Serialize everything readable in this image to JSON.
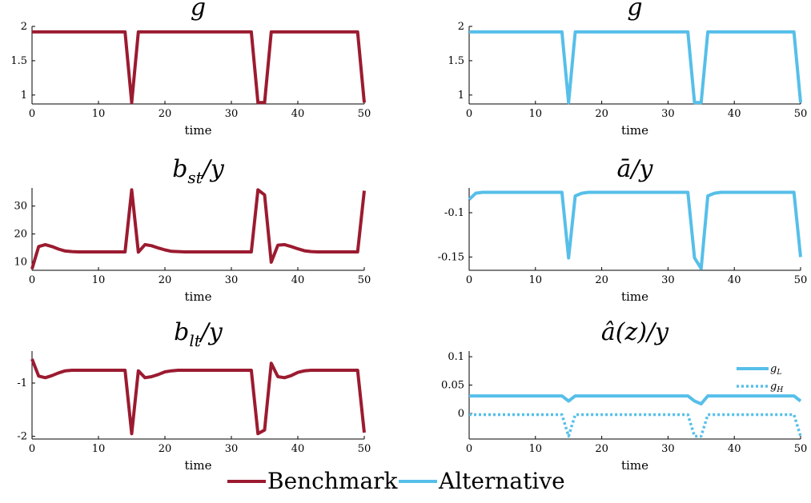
{
  "colors": {
    "benchmark": "#9b1b30",
    "alternative": "#56bfe9"
  },
  "legend": {
    "position": "bottom-center",
    "items": [
      "Benchmark",
      "Alternative"
    ]
  },
  "chart_data": [
    {
      "type": "line",
      "title": "g",
      "xlabel": "time",
      "ylabel": "",
      "xlim": [
        0,
        50
      ],
      "ylim": [
        0.87,
        2.0
      ],
      "xticks": [
        "0",
        "10",
        "20",
        "30",
        "40",
        "50"
      ],
      "yticks": [
        "1",
        "1.5",
        "2"
      ],
      "ytick_values": [
        1,
        1.5,
        2
      ],
      "grid": false,
      "x": [
        0,
        1,
        2,
        3,
        4,
        5,
        6,
        7,
        8,
        9,
        10,
        11,
        12,
        13,
        14,
        15,
        16,
        17,
        18,
        19,
        20,
        21,
        22,
        23,
        24,
        25,
        26,
        27,
        28,
        29,
        30,
        31,
        32,
        33,
        34,
        35,
        36,
        37,
        38,
        39,
        40,
        41,
        42,
        43,
        44,
        45,
        46,
        47,
        48,
        49,
        50
      ],
      "series": [
        {
          "name": "Benchmark",
          "color_key": "benchmark",
          "style": "solid",
          "values": [
            1.92,
            1.92,
            1.92,
            1.92,
            1.92,
            1.92,
            1.92,
            1.92,
            1.92,
            1.92,
            1.92,
            1.92,
            1.92,
            1.92,
            1.92,
            0.89,
            1.92,
            1.92,
            1.92,
            1.92,
            1.92,
            1.92,
            1.92,
            1.92,
            1.92,
            1.92,
            1.92,
            1.92,
            1.92,
            1.92,
            1.92,
            1.92,
            1.92,
            1.92,
            0.89,
            0.89,
            1.92,
            1.92,
            1.92,
            1.92,
            1.92,
            1.92,
            1.92,
            1.92,
            1.92,
            1.92,
            1.92,
            1.92,
            1.92,
            1.92,
            0.89
          ]
        }
      ]
    },
    {
      "type": "line",
      "title": "g",
      "xlabel": "time",
      "ylabel": "",
      "xlim": [
        0,
        50
      ],
      "ylim": [
        0.87,
        2.0
      ],
      "xticks": [
        "0",
        "10",
        "20",
        "30",
        "40",
        "50"
      ],
      "yticks": [
        "1",
        "1.5",
        "2"
      ],
      "ytick_values": [
        1,
        1.5,
        2
      ],
      "grid": false,
      "x": [
        0,
        1,
        2,
        3,
        4,
        5,
        6,
        7,
        8,
        9,
        10,
        11,
        12,
        13,
        14,
        15,
        16,
        17,
        18,
        19,
        20,
        21,
        22,
        23,
        24,
        25,
        26,
        27,
        28,
        29,
        30,
        31,
        32,
        33,
        34,
        35,
        36,
        37,
        38,
        39,
        40,
        41,
        42,
        43,
        44,
        45,
        46,
        47,
        48,
        49,
        50
      ],
      "series": [
        {
          "name": "Alternative",
          "color_key": "alternative",
          "style": "solid",
          "values": [
            1.92,
            1.92,
            1.92,
            1.92,
            1.92,
            1.92,
            1.92,
            1.92,
            1.92,
            1.92,
            1.92,
            1.92,
            1.92,
            1.92,
            1.92,
            0.89,
            1.92,
            1.92,
            1.92,
            1.92,
            1.92,
            1.92,
            1.92,
            1.92,
            1.92,
            1.92,
            1.92,
            1.92,
            1.92,
            1.92,
            1.92,
            1.92,
            1.92,
            1.92,
            0.89,
            0.89,
            1.92,
            1.92,
            1.92,
            1.92,
            1.92,
            1.92,
            1.92,
            1.92,
            1.92,
            1.92,
            1.92,
            1.92,
            1.92,
            1.92,
            0.89
          ]
        }
      ]
    },
    {
      "type": "line",
      "title": "b_st/y",
      "xlabel": "time",
      "ylabel": "",
      "xlim": [
        0,
        50
      ],
      "ylim": [
        7,
        36.5
      ],
      "xticks": [
        "0",
        "10",
        "20",
        "30",
        "40",
        "50"
      ],
      "yticks": [
        "10",
        "20",
        "30"
      ],
      "ytick_values": [
        10,
        20,
        30
      ],
      "grid": false,
      "x": [
        0,
        1,
        2,
        3,
        4,
        5,
        6,
        7,
        8,
        9,
        10,
        11,
        12,
        13,
        14,
        15,
        16,
        17,
        18,
        19,
        20,
        21,
        22,
        23,
        24,
        25,
        26,
        27,
        28,
        29,
        30,
        31,
        32,
        33,
        34,
        35,
        36,
        37,
        38,
        39,
        40,
        41,
        42,
        43,
        44,
        45,
        46,
        47,
        48,
        49,
        50
      ],
      "series": [
        {
          "name": "Benchmark",
          "color_key": "benchmark",
          "style": "solid",
          "values": [
            7.5,
            15.5,
            16.2,
            15.5,
            14.6,
            13.9,
            13.7,
            13.6,
            13.6,
            13.6,
            13.6,
            13.6,
            13.6,
            13.6,
            13.6,
            35.8,
            13.5,
            16.2,
            15.8,
            15.0,
            14.3,
            13.8,
            13.7,
            13.6,
            13.6,
            13.6,
            13.6,
            13.6,
            13.6,
            13.6,
            13.6,
            13.6,
            13.6,
            13.6,
            35.8,
            34.0,
            9.9,
            16.0,
            16.2,
            15.5,
            14.7,
            14.0,
            13.7,
            13.6,
            13.6,
            13.6,
            13.6,
            13.6,
            13.6,
            13.6,
            35.5
          ]
        }
      ]
    },
    {
      "type": "line",
      "title": "ā/y",
      "xlabel": "time",
      "ylabel": "",
      "xlim": [
        0,
        50
      ],
      "ylim": [
        -0.165,
        -0.072
      ],
      "xticks": [
        "0",
        "10",
        "20",
        "30",
        "40",
        "50"
      ],
      "yticks": [
        "-0.1",
        "-0.15"
      ],
      "ytick_values": [
        -0.1,
        -0.15
      ],
      "grid": false,
      "x": [
        0,
        1,
        2,
        3,
        4,
        5,
        6,
        7,
        8,
        9,
        10,
        11,
        12,
        13,
        14,
        15,
        16,
        17,
        18,
        19,
        20,
        21,
        22,
        23,
        24,
        25,
        26,
        27,
        28,
        29,
        30,
        31,
        32,
        33,
        34,
        35,
        36,
        37,
        38,
        39,
        40,
        41,
        42,
        43,
        44,
        45,
        46,
        47,
        48,
        49,
        50
      ],
      "series": [
        {
          "name": "Alternative",
          "color_key": "alternative",
          "style": "solid",
          "values": [
            -0.085,
            -0.078,
            -0.077,
            -0.077,
            -0.077,
            -0.077,
            -0.077,
            -0.077,
            -0.077,
            -0.077,
            -0.077,
            -0.077,
            -0.077,
            -0.077,
            -0.077,
            -0.151,
            -0.081,
            -0.078,
            -0.077,
            -0.077,
            -0.077,
            -0.077,
            -0.077,
            -0.077,
            -0.077,
            -0.077,
            -0.077,
            -0.077,
            -0.077,
            -0.077,
            -0.077,
            -0.077,
            -0.077,
            -0.077,
            -0.151,
            -0.163,
            -0.081,
            -0.078,
            -0.077,
            -0.077,
            -0.077,
            -0.077,
            -0.077,
            -0.077,
            -0.077,
            -0.077,
            -0.077,
            -0.077,
            -0.077,
            -0.077,
            -0.15
          ]
        }
      ]
    },
    {
      "type": "line",
      "title": "b_lt/y",
      "xlabel": "time",
      "ylabel": "",
      "xlim": [
        0,
        50
      ],
      "ylim": [
        -2.05,
        -0.4
      ],
      "xticks": [
        "0",
        "10",
        "20",
        "30",
        "40",
        "50"
      ],
      "yticks": [
        "-1",
        "-2"
      ],
      "ytick_values": [
        -1,
        -2
      ],
      "grid": false,
      "x": [
        0,
        1,
        2,
        3,
        4,
        5,
        6,
        7,
        8,
        9,
        10,
        11,
        12,
        13,
        14,
        15,
        16,
        17,
        18,
        19,
        20,
        21,
        22,
        23,
        24,
        25,
        26,
        27,
        28,
        29,
        30,
        31,
        32,
        33,
        34,
        35,
        36,
        37,
        38,
        39,
        40,
        41,
        42,
        43,
        44,
        45,
        46,
        47,
        48,
        49,
        50
      ],
      "series": [
        {
          "name": "Benchmark",
          "color_key": "benchmark",
          "style": "solid",
          "values": [
            -0.55,
            -0.87,
            -0.9,
            -0.86,
            -0.81,
            -0.77,
            -0.76,
            -0.76,
            -0.76,
            -0.76,
            -0.76,
            -0.76,
            -0.76,
            -0.76,
            -0.76,
            -1.95,
            -0.77,
            -0.9,
            -0.88,
            -0.84,
            -0.79,
            -0.77,
            -0.76,
            -0.76,
            -0.76,
            -0.76,
            -0.76,
            -0.76,
            -0.76,
            -0.76,
            -0.76,
            -0.76,
            -0.76,
            -0.76,
            -1.95,
            -1.88,
            -0.63,
            -0.88,
            -0.9,
            -0.86,
            -0.8,
            -0.77,
            -0.76,
            -0.76,
            -0.76,
            -0.76,
            -0.76,
            -0.76,
            -0.76,
            -0.76,
            -1.93
          ]
        }
      ]
    },
    {
      "type": "line",
      "title": "â(z)/y",
      "xlabel": "time",
      "ylabel": "",
      "xlim": [
        0,
        50
      ],
      "ylim": [
        -0.045,
        0.11
      ],
      "xticks": [
        "0",
        "10",
        "20",
        "30",
        "40",
        "50"
      ],
      "yticks": [
        "0.1",
        "0.05",
        "0"
      ],
      "ytick_values": [
        0.1,
        0.05,
        0
      ],
      "grid": false,
      "legend": {
        "position": "top-right",
        "labels": [
          "g_L",
          "g_H"
        ],
        "label_main": [
          "g",
          "g"
        ],
        "label_sub": [
          "L",
          "H"
        ]
      },
      "x": [
        0,
        1,
        2,
        3,
        4,
        5,
        6,
        7,
        8,
        9,
        10,
        11,
        12,
        13,
        14,
        15,
        16,
        17,
        18,
        19,
        20,
        21,
        22,
        23,
        24,
        25,
        26,
        27,
        28,
        29,
        30,
        31,
        32,
        33,
        34,
        35,
        36,
        37,
        38,
        39,
        40,
        41,
        42,
        43,
        44,
        45,
        46,
        47,
        48,
        49,
        50
      ],
      "series": [
        {
          "name": "g_L",
          "color_key": "alternative",
          "style": "solid",
          "values": [
            0.031,
            0.031,
            0.031,
            0.031,
            0.031,
            0.031,
            0.031,
            0.031,
            0.031,
            0.031,
            0.031,
            0.031,
            0.031,
            0.031,
            0.031,
            0.022,
            0.031,
            0.031,
            0.031,
            0.031,
            0.031,
            0.031,
            0.031,
            0.031,
            0.031,
            0.031,
            0.031,
            0.031,
            0.031,
            0.031,
            0.031,
            0.031,
            0.031,
            0.031,
            0.022,
            0.017,
            0.031,
            0.031,
            0.031,
            0.031,
            0.031,
            0.031,
            0.031,
            0.031,
            0.031,
            0.031,
            0.031,
            0.031,
            0.031,
            0.031,
            0.022
          ]
        },
        {
          "name": "g_H",
          "color_key": "alternative",
          "style": "dotted",
          "values": [
            -0.002,
            -0.002,
            -0.002,
            -0.002,
            -0.002,
            -0.002,
            -0.002,
            -0.002,
            -0.002,
            -0.002,
            -0.002,
            -0.002,
            -0.002,
            -0.002,
            -0.002,
            -0.04,
            -0.002,
            -0.002,
            -0.002,
            -0.002,
            -0.002,
            -0.002,
            -0.002,
            -0.002,
            -0.002,
            -0.002,
            -0.002,
            -0.002,
            -0.002,
            -0.002,
            -0.002,
            -0.002,
            -0.002,
            -0.002,
            -0.04,
            -0.04,
            -0.002,
            -0.002,
            -0.002,
            -0.002,
            -0.002,
            -0.002,
            -0.002,
            -0.002,
            -0.002,
            -0.002,
            -0.002,
            -0.002,
            -0.002,
            -0.002,
            -0.04
          ]
        }
      ]
    }
  ]
}
